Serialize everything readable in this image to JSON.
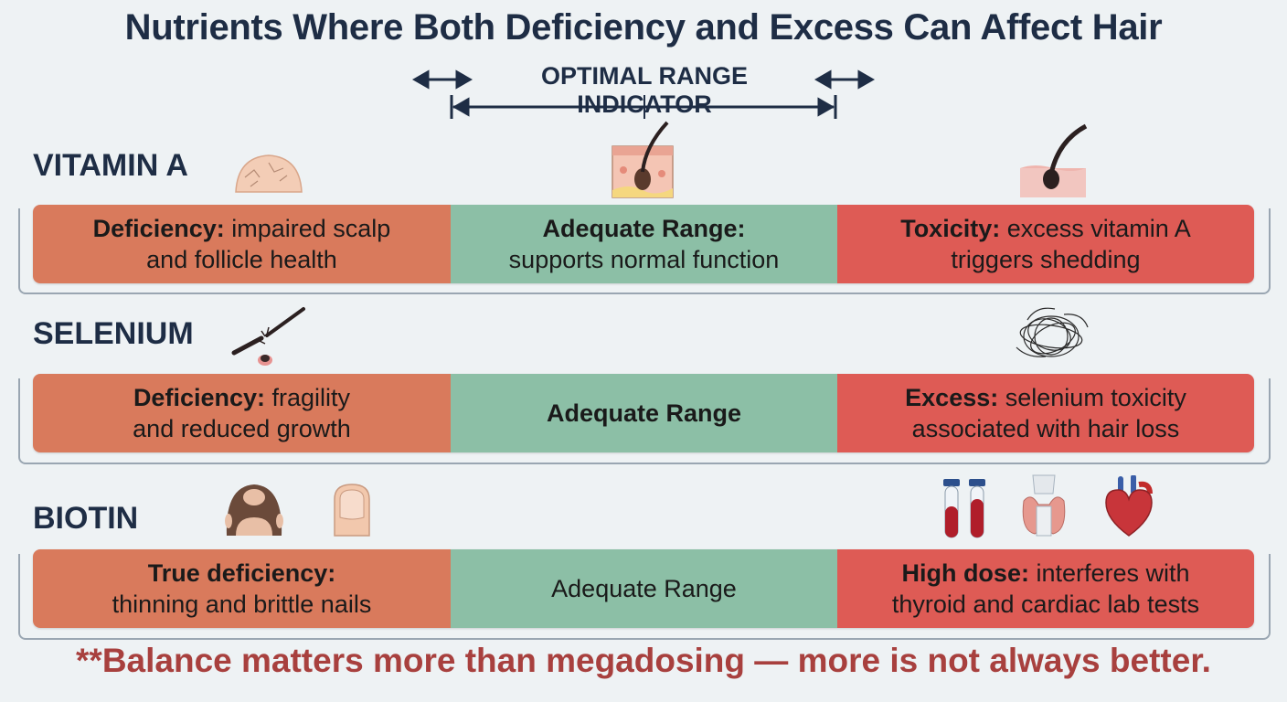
{
  "title": "Nutrients Where Both Deficiency and Excess Can Affect Hair",
  "indicator": {
    "label": "OPTIMAL RANGE INDICATOR"
  },
  "colors": {
    "deficiency": "#d97a5c",
    "adequate": "#8cbfa6",
    "excess": "#de5b55",
    "footer": "#a8403e",
    "heading": "#1e2d45"
  },
  "nutrients": [
    {
      "name": "VITAMIN A",
      "icons": [
        "dry-scalp-icon",
        "hair-follicle-cross-section-icon",
        "hair-follicle-icon"
      ],
      "deficiency": {
        "term": "Deficiency:",
        "text_1": " impaired scalp",
        "text_2": "and follicle health"
      },
      "adequate": {
        "term": "Adequate Range:",
        "text_2": "supports normal function"
      },
      "excess": {
        "term": "Toxicity:",
        "text_1": " excess vitamin A",
        "text_2": "triggers shedding"
      }
    },
    {
      "name": "SELENIUM",
      "icons": [
        "broken-hair-icon",
        "tangled-hair-clump-icon"
      ],
      "deficiency": {
        "term": "Deficiency:",
        "text_1": " fragility",
        "text_2": "and reduced growth"
      },
      "adequate": {
        "label": "Adequate Range"
      },
      "excess": {
        "term": "Excess:",
        "text_1": " selenium toxicity",
        "text_2": "associated with hair loss"
      }
    },
    {
      "name": "BIOTIN",
      "icons": [
        "thinning-hair-head-icon",
        "fingernail-icon",
        "blood-test-tubes-icon",
        "thyroid-icon",
        "heart-icon"
      ],
      "deficiency": {
        "term": "True deficiency:",
        "text_2": "thinning and brittle nails"
      },
      "adequate": {
        "label": "Adequate Range"
      },
      "excess": {
        "term": "High dose:",
        "text_1": " interferes with",
        "text_2": "thyroid and cardiac lab tests"
      }
    }
  ],
  "footer": "**Balance matters more than megadosing — more is not always better."
}
